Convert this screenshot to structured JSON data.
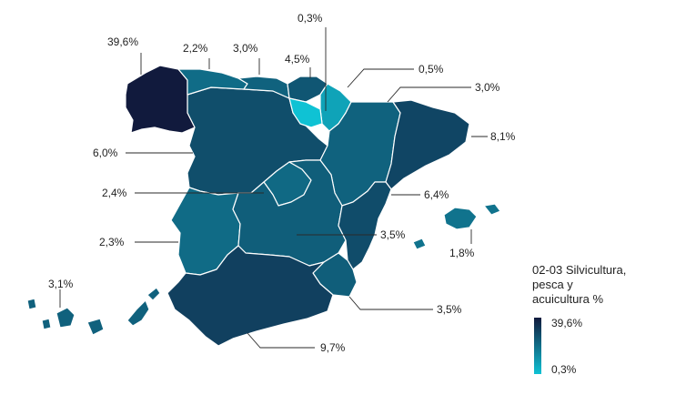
{
  "legend": {
    "title_lines": [
      "02-03 Silvicultura,",
      "pesca y",
      "acuicultura %"
    ],
    "max_label": "39,6%",
    "min_label": "0,3%",
    "color_max": "#111a3d",
    "color_min": "#0fc2d4"
  },
  "regions": [
    {
      "id": "galicia",
      "label": "39,6%",
      "value": 39.6
    },
    {
      "id": "asturias",
      "label": "2,2%",
      "value": 2.2
    },
    {
      "id": "cantabria",
      "label": "3,0%",
      "value": 3.0
    },
    {
      "id": "pais-vasco",
      "label": "4,5%",
      "value": 4.5
    },
    {
      "id": "la-rioja",
      "label": "0,3%",
      "value": 0.3
    },
    {
      "id": "navarra",
      "label": "0,5%",
      "value": 0.5
    },
    {
      "id": "aragon",
      "label": "3,0%",
      "value": 3.0
    },
    {
      "id": "cataluna",
      "label": "8,1%",
      "value": 8.1
    },
    {
      "id": "castilla-leon",
      "label": "6,0%",
      "value": 6.0
    },
    {
      "id": "madrid",
      "label": "2,4%",
      "value": 2.4
    },
    {
      "id": "valencia",
      "label": "6,4%",
      "value": 6.4
    },
    {
      "id": "extremadura",
      "label": "2,3%",
      "value": 2.3
    },
    {
      "id": "castilla-la-mancha",
      "label": "3,5%",
      "value": 3.5
    },
    {
      "id": "baleares",
      "label": "1,8%",
      "value": 1.8
    },
    {
      "id": "canarias",
      "label": "3,1%",
      "value": 3.1
    },
    {
      "id": "murcia",
      "label": "3,5%",
      "value": 3.5
    },
    {
      "id": "andalucia",
      "label": "9,7%",
      "value": 9.7
    }
  ]
}
